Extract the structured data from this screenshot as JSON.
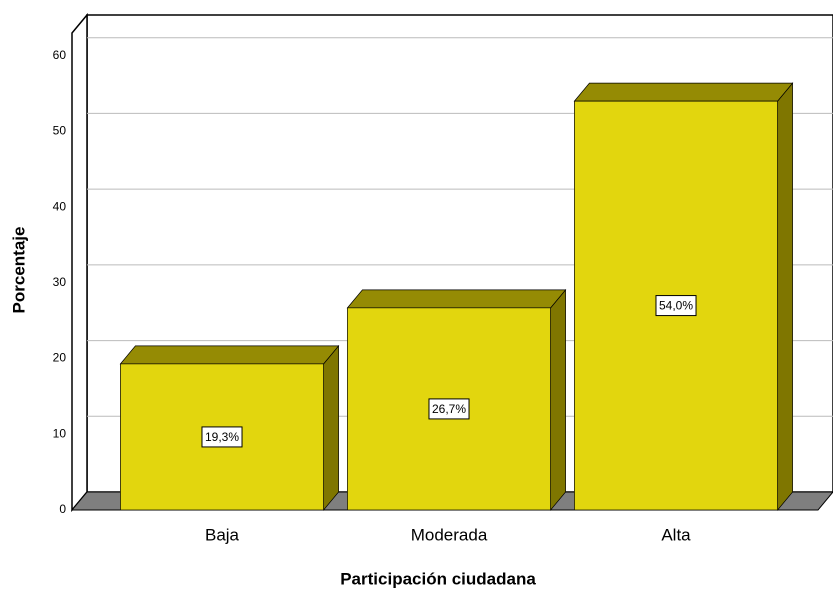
{
  "chart_data": {
    "type": "bar",
    "x_label": "Participación ciudadana",
    "y_label": "Porcentaje",
    "categories": [
      "Baja",
      "Moderada",
      "Alta"
    ],
    "values": [
      19.3,
      26.7,
      54.0
    ],
    "value_labels": [
      "19,3%",
      "26,7%",
      "54,0%"
    ],
    "color": "#e2d60e",
    "ylim": [
      0,
      63
    ],
    "yticks": [
      0,
      10,
      20,
      30,
      40,
      50,
      60
    ],
    "grid": true
  }
}
